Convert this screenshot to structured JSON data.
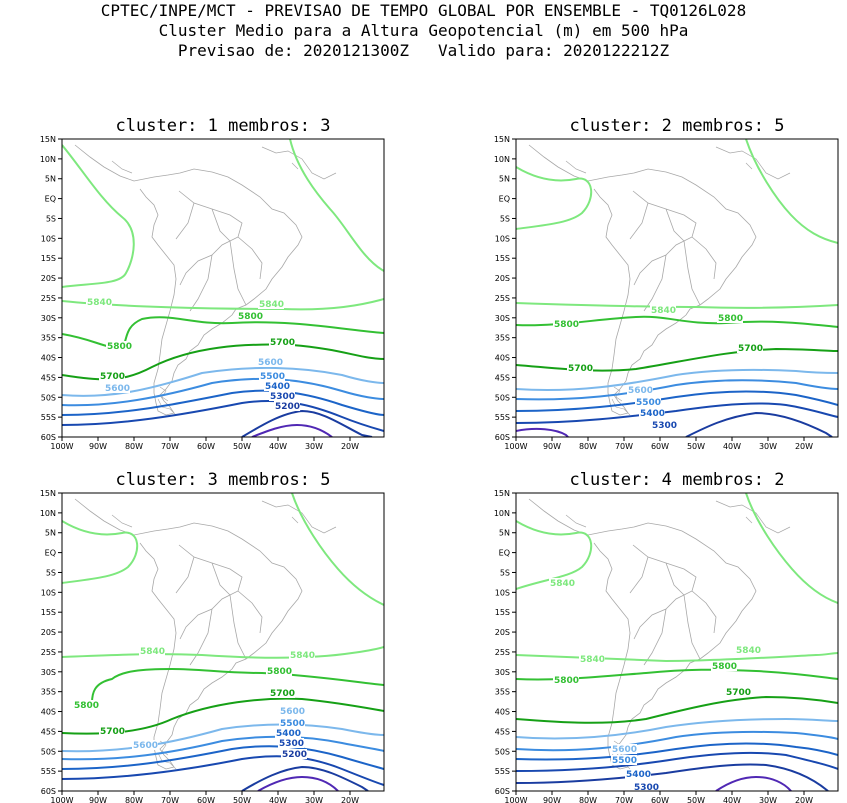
{
  "header": {
    "line1": "CPTEC/INPE/MCT - PREVISAO DE TEMPO GLOBAL POR ENSEMBLE - TQ0126L028",
    "line2": "Cluster Medio para a Altura Geopotencial (m) em 500 hPa",
    "line3": "Previsao de: 2020121300Z   Valido para: 2020122212Z"
  },
  "axes": {
    "lat_ticks": [
      "15N",
      "10N",
      "5N",
      "EQ",
      "5S",
      "10S",
      "15S",
      "20S",
      "25S",
      "30S",
      "35S",
      "40S",
      "45S",
      "50S",
      "55S",
      "60S"
    ],
    "lon_ticks": [
      "100W",
      "90W",
      "80W",
      "70W",
      "60W",
      "50W",
      "40W",
      "30W",
      "20W"
    ]
  },
  "colors": {
    "c5840": "#7ee87e",
    "c5800": "#33c033",
    "c5700": "#16a016",
    "c5600": "#7cb8ec",
    "c5500": "#3c8ce0",
    "c5400": "#1c64c8",
    "c5300": "#1848b0",
    "c5200": "#1a3ca0",
    "c5100": "#5028b4",
    "land": "#a8a8a8"
  },
  "panels": [
    {
      "title": "cluster: 1  membros: 3",
      "labels": [
        "5840",
        "5840",
        "5800",
        "5800",
        "5700",
        "5700",
        "5600",
        "5600",
        "5500",
        "5400",
        "5300",
        "5200"
      ]
    },
    {
      "title": "cluster: 2  membros: 5",
      "labels": [
        "5840",
        "5800",
        "5800",
        "5700",
        "5700",
        "5600",
        "5500",
        "5400",
        "5300"
      ]
    },
    {
      "title": "cluster: 3  membros: 5",
      "labels": [
        "5840",
        "5840",
        "5800",
        "5800",
        "5700",
        "5700",
        "5600",
        "5600",
        "5500",
        "5400",
        "5300",
        "5200"
      ]
    },
    {
      "title": "cluster: 4  membros: 2",
      "labels": [
        "5840",
        "5840",
        "5840",
        "5800",
        "5800",
        "5700",
        "5600",
        "5500",
        "5400",
        "5300"
      ]
    }
  ]
}
